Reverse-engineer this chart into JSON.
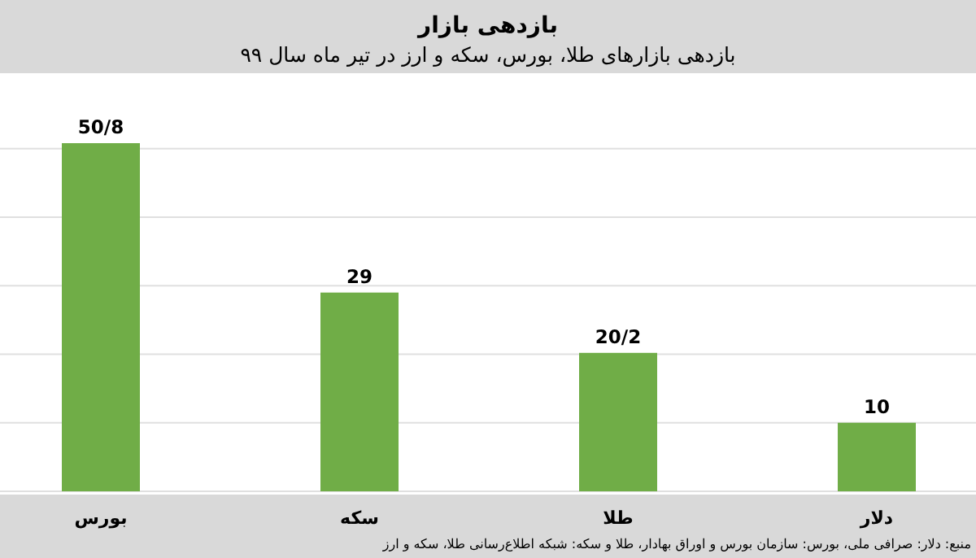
{
  "chart_data": {
    "type": "bar",
    "title": "بازدهی بازار",
    "subtitle": "بازدهی بازارهای طلا، بورس، سکه و ارز در تیر ماه سال ۹۹",
    "categories": [
      "بورس",
      "سکه",
      "طلا",
      "دلار"
    ],
    "values": [
      50.8,
      29,
      20.2,
      10
    ],
    "value_labels": [
      "50/8",
      "29",
      "20/2",
      "10"
    ],
    "color": "#70ad47",
    "yticks": [
      {
        "value": 0,
        "label": null
      },
      {
        "value": 10,
        "label": null
      },
      {
        "value": 20,
        "label": null
      },
      {
        "value": 30,
        "label": null
      },
      {
        "value": 40,
        "label": null
      },
      {
        "value": 50,
        "label": null
      }
    ],
    "grid": "y",
    "annotations": [
      "منبع: دلار: صرافی ملی، بورس: سازمان بورس و اوراق بهادار، طلا و سکه: شبکه اطلاع‌رسانی طلا، سکه و ارز"
    ]
  }
}
